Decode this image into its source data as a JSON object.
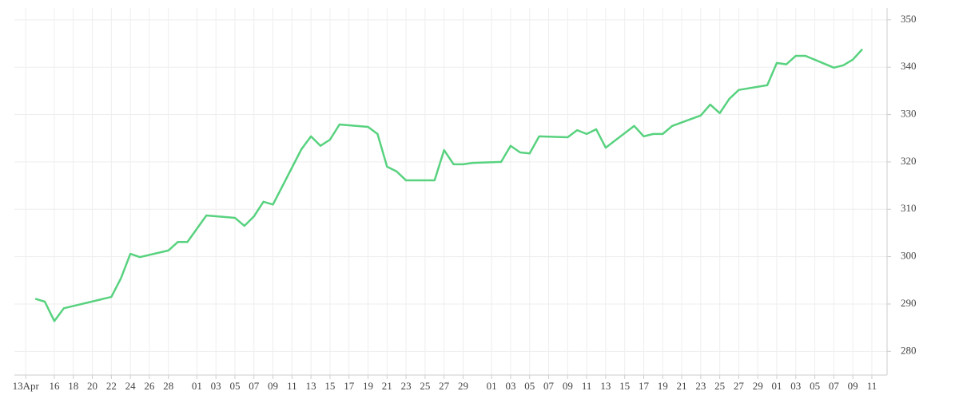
{
  "chart_data": {
    "type": "line",
    "x": [
      1,
      2,
      3,
      4,
      9,
      10,
      11,
      12,
      15,
      16,
      17,
      19,
      22,
      23,
      24,
      25,
      26,
      29,
      30,
      31,
      32,
      33,
      36,
      37,
      38,
      39,
      40,
      43,
      44,
      45,
      46,
      47,
      50,
      51,
      52,
      53,
      54,
      57,
      58,
      59,
      60,
      61,
      64,
      65,
      66,
      67,
      68,
      71,
      72,
      73,
      74,
      75,
      78,
      79,
      80,
      81,
      82,
      85,
      86,
      87,
      88
    ],
    "series": [
      {
        "color": "#58d27f",
        "values": [
          291.1,
          290.5,
          286.4,
          289.1,
          291.5,
          295.4,
          300.6,
          299.9,
          301.3,
          303.1,
          303.1,
          308.7,
          308.2,
          306.5,
          308.5,
          311.6,
          311.0,
          322.7,
          325.4,
          323.4,
          324.7,
          327.9,
          327.4,
          325.9,
          319.0,
          318.0,
          316.1,
          316.1,
          322.5,
          319.5,
          319.5,
          319.8,
          320.0,
          323.4,
          322.0,
          321.8,
          325.4,
          325.2,
          326.7,
          325.9,
          326.9,
          323.0,
          327.6,
          325.4,
          325.9,
          325.9,
          327.6,
          329.8,
          332.1,
          330.3,
          333.3,
          335.2,
          336.2,
          340.9,
          340.6,
          342.4,
          342.4,
          339.9,
          340.4,
          341.6,
          343.8
        ]
      }
    ],
    "xlim": [
      -1.2,
      90.6
    ],
    "xticks": [
      {
        "value": 0,
        "label": "13Apr"
      },
      {
        "value": 3,
        "label": "16"
      },
      {
        "value": 5,
        "label": "18"
      },
      {
        "value": 7,
        "label": "20"
      },
      {
        "value": 9,
        "label": "22"
      },
      {
        "value": 11,
        "label": "24"
      },
      {
        "value": 13,
        "label": "26"
      },
      {
        "value": 15,
        "label": "28"
      },
      {
        "value": 18,
        "label": "01"
      },
      {
        "value": 20,
        "label": "03"
      },
      {
        "value": 22,
        "label": "05"
      },
      {
        "value": 24,
        "label": "07"
      },
      {
        "value": 26,
        "label": "09"
      },
      {
        "value": 28,
        "label": "11"
      },
      {
        "value": 30,
        "label": "13"
      },
      {
        "value": 32,
        "label": "15"
      },
      {
        "value": 34,
        "label": "17"
      },
      {
        "value": 36,
        "label": "19"
      },
      {
        "value": 38,
        "label": "21"
      },
      {
        "value": 40,
        "label": "23"
      },
      {
        "value": 42,
        "label": "25"
      },
      {
        "value": 44,
        "label": "27"
      },
      {
        "value": 46,
        "label": "29"
      },
      {
        "value": 49,
        "label": "01"
      },
      {
        "value": 51,
        "label": "03"
      },
      {
        "value": 53,
        "label": "05"
      },
      {
        "value": 55,
        "label": "07"
      },
      {
        "value": 57,
        "label": "09"
      },
      {
        "value": 59,
        "label": "11"
      },
      {
        "value": 61,
        "label": "13"
      },
      {
        "value": 63,
        "label": "15"
      },
      {
        "value": 65,
        "label": "17"
      },
      {
        "value": 67,
        "label": "19"
      },
      {
        "value": 69,
        "label": "21"
      },
      {
        "value": 71,
        "label": "23"
      },
      {
        "value": 73,
        "label": "25"
      },
      {
        "value": 75,
        "label": "27"
      },
      {
        "value": 77,
        "label": "29"
      },
      {
        "value": 79,
        "label": "01"
      },
      {
        "value": 81,
        "label": "03"
      },
      {
        "value": 83,
        "label": "05"
      },
      {
        "value": 85,
        "label": "07"
      },
      {
        "value": 87,
        "label": "09"
      },
      {
        "value": 89,
        "label": "11"
      }
    ],
    "ylim": [
      275,
      352.5
    ],
    "yticks": [
      280,
      290,
      300,
      310,
      320,
      330,
      340,
      350
    ],
    "grid": true
  }
}
